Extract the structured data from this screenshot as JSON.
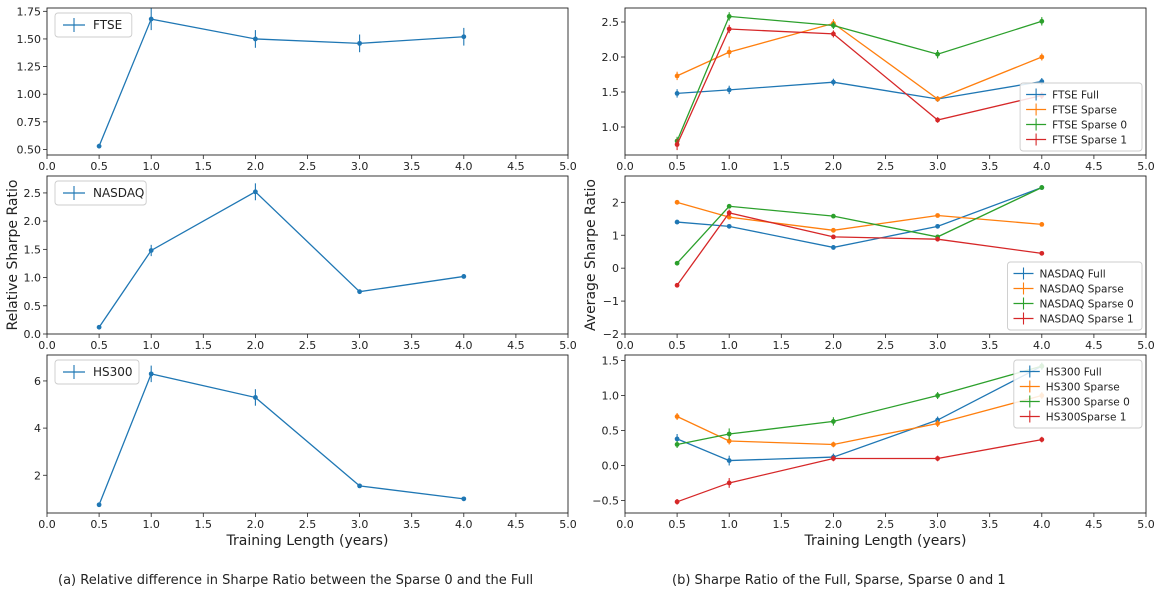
{
  "figure": {
    "caption_a": "(a) Relative difference in Sharpe Ratio between the Sparse 0 and the Full",
    "caption_b": "(b) Sharpe Ratio of the Full, Sparse, Sparse 0 and 1"
  },
  "chart_data": [
    {
      "id": "a1",
      "type": "line",
      "xlabel": "",
      "ylabel": "",
      "xlim": [
        0,
        5
      ],
      "ylim": [
        0.45,
        1.78
      ],
      "yticks": [
        0.5,
        0.75,
        1.0,
        1.25,
        1.5,
        1.75
      ],
      "ytick_labels": [
        "0.50",
        "0.75",
        "1.00",
        "1.25",
        "1.50",
        "1.75"
      ],
      "legend": "top-left",
      "series": [
        {
          "name": "FTSE",
          "color": "#1f77b4",
          "x": [
            0.5,
            1.0,
            2.0,
            3.0,
            4.0
          ],
          "y": [
            0.53,
            1.68,
            1.5,
            1.46,
            1.52
          ],
          "err": [
            0.02,
            0.1,
            0.08,
            0.08,
            0.08
          ]
        }
      ]
    },
    {
      "id": "a2",
      "type": "line",
      "xlabel": "",
      "ylabel": "Relative Sharpe Ratio",
      "xlim": [
        0,
        5
      ],
      "ylim": [
        0,
        2.8
      ],
      "yticks": [
        0.0,
        0.5,
        1.0,
        1.5,
        2.0,
        2.5
      ],
      "ytick_labels": [
        "0.0",
        "0.5",
        "1.0",
        "1.5",
        "2.0",
        "2.5"
      ],
      "legend": "top-left",
      "series": [
        {
          "name": "NASDAQ",
          "color": "#1f77b4",
          "x": [
            0.5,
            1.0,
            2.0,
            3.0,
            4.0
          ],
          "y": [
            0.12,
            1.48,
            2.52,
            0.75,
            1.02
          ],
          "err": [
            0.03,
            0.1,
            0.15,
            0.03,
            0.03
          ]
        }
      ]
    },
    {
      "id": "a3",
      "type": "line",
      "xlabel": "Training Length (years)",
      "ylabel": "",
      "xlim": [
        0,
        5
      ],
      "ylim": [
        0.4,
        7.1
      ],
      "yticks": [
        2,
        4,
        6
      ],
      "ytick_labels": [
        "2",
        "4",
        "6"
      ],
      "legend": "top-left",
      "series": [
        {
          "name": "HS300",
          "color": "#1f77b4",
          "x": [
            0.5,
            1.0,
            2.0,
            3.0,
            4.0
          ],
          "y": [
            0.75,
            6.3,
            5.3,
            1.55,
            1.0
          ],
          "err": [
            0.05,
            0.35,
            0.35,
            0.05,
            0.05
          ]
        }
      ]
    },
    {
      "id": "b1",
      "type": "line",
      "xlabel": "",
      "ylabel": "",
      "xlim": [
        0,
        5
      ],
      "ylim": [
        0.6,
        2.7
      ],
      "yticks": [
        1.0,
        1.5,
        2.0,
        2.5
      ],
      "ytick_labels": [
        "1.0",
        "1.5",
        "2.0",
        "2.5"
      ],
      "legend": "bottom-right",
      "series": [
        {
          "name": "FTSE Full",
          "color": "#1f77b4",
          "x": [
            0.5,
            1.0,
            2.0,
            3.0,
            4.0
          ],
          "y": [
            1.48,
            1.53,
            1.64,
            1.4,
            1.65
          ],
          "err": [
            0.06,
            0.06,
            0.05,
            0.04,
            0.05
          ]
        },
        {
          "name": "FTSE Sparse",
          "color": "#ff7f0e",
          "x": [
            0.5,
            1.0,
            2.0,
            3.0,
            4.0
          ],
          "y": [
            1.73,
            2.07,
            2.48,
            1.4,
            2.0
          ],
          "err": [
            0.06,
            0.08,
            0.06,
            0.04,
            0.05
          ]
        },
        {
          "name": "FTSE Sparse 0",
          "color": "#2ca02c",
          "x": [
            0.5,
            1.0,
            2.0,
            3.0,
            4.0
          ],
          "y": [
            0.8,
            2.58,
            2.45,
            2.04,
            2.51
          ],
          "err": [
            0.06,
            0.06,
            0.05,
            0.06,
            0.06
          ]
        },
        {
          "name": "FTSE Sparse 1",
          "color": "#d62728",
          "x": [
            0.5,
            1.0,
            2.0,
            3.0,
            4.0
          ],
          "y": [
            0.75,
            2.4,
            2.33,
            1.1,
            1.45
          ],
          "err": [
            0.08,
            0.06,
            0.05,
            0.04,
            0.05
          ]
        }
      ]
    },
    {
      "id": "b2",
      "type": "line",
      "xlabel": "",
      "ylabel": "Average Sharpe Ratio",
      "xlim": [
        0,
        5
      ],
      "ylim": [
        -2,
        2.8
      ],
      "yticks": [
        -2,
        -1,
        0,
        1,
        2
      ],
      "ytick_labels": [
        "−2",
        "−1",
        "0",
        "1",
        "2"
      ],
      "legend": "bottom-right",
      "series": [
        {
          "name": "NASDAQ Full",
          "color": "#1f77b4",
          "x": [
            0.5,
            1.0,
            2.0,
            3.0,
            4.0
          ],
          "y": [
            1.4,
            1.27,
            0.63,
            1.27,
            2.45
          ],
          "err": [
            0.05,
            0.05,
            0.05,
            0.05,
            0.05
          ]
        },
        {
          "name": "NASDAQ Sparse",
          "color": "#ff7f0e",
          "x": [
            0.5,
            1.0,
            2.0,
            3.0,
            4.0
          ],
          "y": [
            2.0,
            1.55,
            1.15,
            1.6,
            1.33
          ],
          "err": [
            0.05,
            0.05,
            0.05,
            0.05,
            0.05
          ]
        },
        {
          "name": "NASDAQ Sparse 0",
          "color": "#2ca02c",
          "x": [
            0.5,
            1.0,
            2.0,
            3.0,
            4.0
          ],
          "y": [
            0.15,
            1.88,
            1.58,
            0.95,
            2.45
          ],
          "err": [
            0.05,
            0.05,
            0.05,
            0.05,
            0.05
          ]
        },
        {
          "name": "NASDAQ Sparse 1",
          "color": "#d62728",
          "x": [
            0.5,
            1.0,
            2.0,
            3.0,
            4.0
          ],
          "y": [
            -0.52,
            1.68,
            0.95,
            0.88,
            0.45
          ],
          "err": [
            0.05,
            0.1,
            0.05,
            0.05,
            0.05
          ]
        }
      ]
    },
    {
      "id": "b3",
      "type": "line",
      "xlabel": "Training Length (years)",
      "ylabel": "",
      "xlim": [
        0,
        5
      ],
      "ylim": [
        -0.68,
        1.58
      ],
      "yticks": [
        -0.5,
        0.0,
        0.5,
        1.0,
        1.5
      ],
      "ytick_labels": [
        "−0.5",
        "0.0",
        "0.5",
        "1.0",
        "1.5"
      ],
      "legend": "top-right",
      "series": [
        {
          "name": "HS300 Full",
          "color": "#1f77b4",
          "x": [
            0.5,
            1.0,
            2.0,
            3.0,
            4.0
          ],
          "y": [
            0.38,
            0.07,
            0.12,
            0.65,
            1.42
          ],
          "err": [
            0.07,
            0.07,
            0.05,
            0.05,
            0.05
          ]
        },
        {
          "name": "HS300 Sparse",
          "color": "#ff7f0e",
          "x": [
            0.5,
            1.0,
            2.0,
            3.0,
            4.0
          ],
          "y": [
            0.7,
            0.35,
            0.3,
            0.6,
            1.0
          ],
          "err": [
            0.05,
            0.05,
            0.04,
            0.05,
            0.05
          ]
        },
        {
          "name": "HS300 Sparse 0",
          "color": "#2ca02c",
          "x": [
            0.5,
            1.0,
            2.0,
            3.0,
            4.0
          ],
          "y": [
            0.3,
            0.45,
            0.63,
            1.0,
            1.42
          ],
          "err": [
            0.05,
            0.08,
            0.06,
            0.05,
            0.05
          ]
        },
        {
          "name": "HS300Sparse 1",
          "color": "#d62728",
          "x": [
            0.5,
            1.0,
            2.0,
            3.0,
            4.0
          ],
          "y": [
            -0.52,
            -0.25,
            0.1,
            0.1,
            0.37
          ],
          "err": [
            0.04,
            0.07,
            0.04,
            0.04,
            0.04
          ]
        }
      ]
    }
  ],
  "shared_xticks": [
    0.0,
    0.5,
    1.0,
    1.5,
    2.0,
    2.5,
    3.0,
    3.5,
    4.0,
    4.5,
    5.0
  ],
  "shared_xtick_labels": [
    "0.0",
    "0.5",
    "1.0",
    "1.5",
    "2.0",
    "2.5",
    "3.0",
    "3.5",
    "4.0",
    "4.5",
    "5.0"
  ]
}
